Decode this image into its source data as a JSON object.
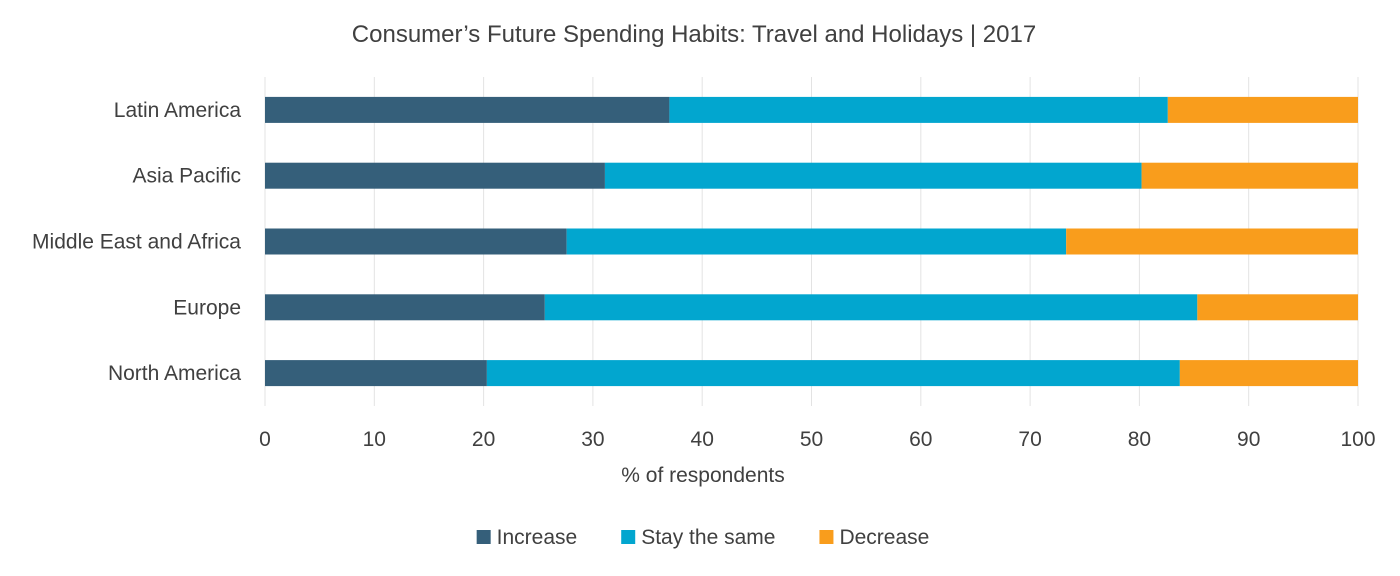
{
  "chart_data": {
    "type": "bar",
    "orientation": "horizontal",
    "stacked": true,
    "title": "Consumer’s Future Spending Habits: Travel and Holidays | 2017",
    "xlabel": "% of respondents",
    "ylabel": "",
    "xlim": [
      0,
      100
    ],
    "xticks": [
      0,
      10,
      20,
      30,
      40,
      50,
      60,
      70,
      80,
      90,
      100
    ],
    "grid": true,
    "legend_position": "bottom",
    "categories": [
      "Latin America",
      "Asia Pacific",
      "Middle East and Africa",
      "Europe",
      "North America"
    ],
    "series": [
      {
        "name": "Increase",
        "color": "#355F7A",
        "values": [
          37.0,
          31.1,
          27.6,
          25.6,
          20.3
        ]
      },
      {
        "name": "Stay the same",
        "color": "#02A6CF",
        "values": [
          45.6,
          49.1,
          45.7,
          59.7,
          63.4
        ]
      },
      {
        "name": "Decrease",
        "color": "#F99D1C",
        "values": [
          17.4,
          19.8,
          26.7,
          14.7,
          16.3
        ]
      }
    ]
  }
}
